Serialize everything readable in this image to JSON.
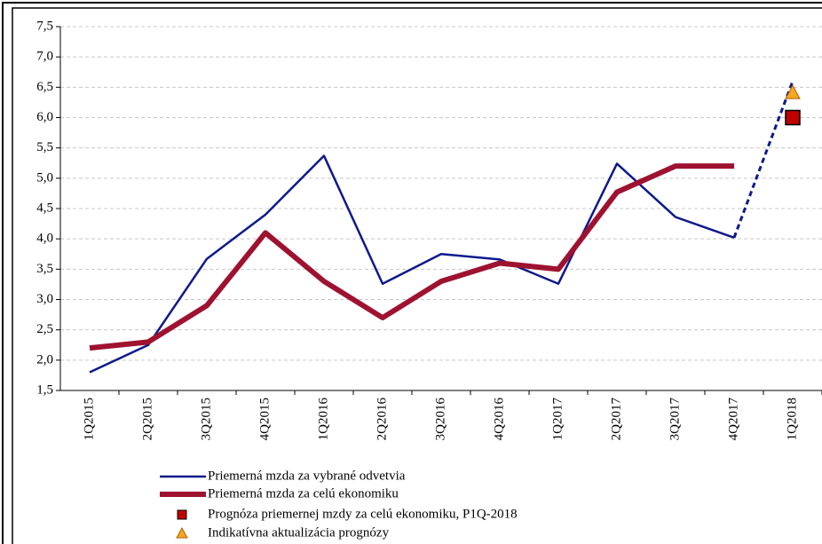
{
  "chart_data": {
    "type": "line",
    "categories": [
      "1Q2015",
      "2Q2015",
      "3Q2015",
      "4Q2015",
      "1Q2016",
      "2Q2016",
      "3Q2016",
      "4Q2016",
      "1Q2017",
      "2Q2017",
      "3Q2017",
      "4Q2017",
      "1Q2018"
    ],
    "series": [
      {
        "name": "Priemerná mzda za vybrané odvetvia",
        "color": "#0d1a8c",
        "marker": "line",
        "dashed_last_segment": true,
        "values": [
          1.8,
          2.25,
          3.67,
          4.4,
          5.37,
          3.26,
          3.75,
          3.66,
          3.26,
          5.24,
          4.36,
          4.02,
          6.6
        ]
      },
      {
        "name": "Priemerná mzda za celú ekonomiku",
        "color": "#9e1230",
        "marker": "thick-line",
        "values": [
          2.2,
          2.3,
          2.9,
          4.1,
          3.3,
          2.7,
          3.3,
          3.6,
          3.5,
          4.77,
          5.2,
          5.2,
          null
        ]
      },
      {
        "name": "Prognóza priemernej mzdy za celú ekonomiku, P1Q-2018",
        "color": "#c00000",
        "marker": "square",
        "values": [
          null,
          null,
          null,
          null,
          null,
          null,
          null,
          null,
          null,
          null,
          null,
          null,
          6.0
        ]
      },
      {
        "name": "Indikatívna aktualizácia prognózy",
        "color": "#f5a623",
        "marker": "triangle",
        "values": [
          null,
          null,
          null,
          null,
          null,
          null,
          null,
          null,
          null,
          null,
          null,
          null,
          6.4
        ]
      }
    ],
    "ylim": [
      1.5,
      7.5
    ],
    "yticks": [
      {
        "value": 1.5,
        "label": "1,5"
      },
      {
        "value": 2.0,
        "label": "2,0"
      },
      {
        "value": 2.5,
        "label": "2,5"
      },
      {
        "value": 3.0,
        "label": "3,0"
      },
      {
        "value": 3.5,
        "label": "3,5"
      },
      {
        "value": 4.0,
        "label": "4,0"
      },
      {
        "value": 4.5,
        "label": "4,5"
      },
      {
        "value": 5.0,
        "label": "5,0"
      },
      {
        "value": 5.5,
        "label": "5,5"
      },
      {
        "value": 6.0,
        "label": "6,0"
      },
      {
        "value": 6.5,
        "label": "6,5"
      },
      {
        "value": 7.0,
        "label": "7,0"
      },
      {
        "value": 7.5,
        "label": "7,5"
      }
    ],
    "grid": true
  }
}
